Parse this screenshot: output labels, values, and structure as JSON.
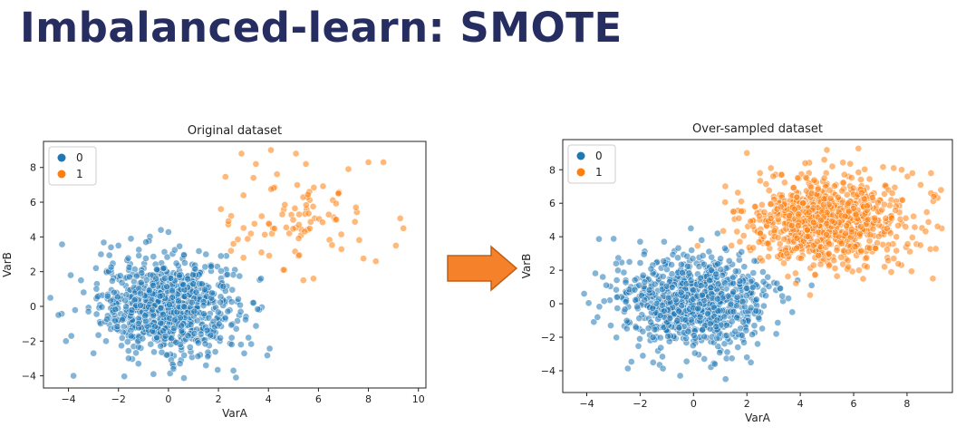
{
  "slide": {
    "title": "Imbalanced-learn: SMOTE"
  },
  "colors": {
    "class0": "#1f77b4",
    "class1": "#ff7f0e",
    "arrow_fill": "#f5822a",
    "arrow_stroke": "#c25e13",
    "title": "#262d61"
  },
  "icons": {
    "arrow": "right-arrow-icon"
  },
  "chart_data": [
    {
      "type": "scatter",
      "title": "Original dataset",
      "xlabel": "VarA",
      "ylabel": "VarB",
      "xlim": [
        -5,
        10.3
      ],
      "ylim": [
        -4.7,
        9.5
      ],
      "xticks": [
        -4,
        -2,
        0,
        2,
        4,
        6,
        8,
        10
      ],
      "yticks": [
        -4,
        -2,
        0,
        2,
        4,
        6,
        8
      ],
      "legend": {
        "placement": "top-left",
        "entries": [
          "0",
          "1"
        ]
      },
      "grid": false,
      "series": [
        {
          "name": "0",
          "color": "#1f77b4",
          "alpha": 0.55,
          "summary": {
            "count": 900,
            "center": [
              0,
              0
            ],
            "spread": [
              1.35,
              1.35
            ]
          },
          "points": [
            [
              -4.4,
              -0.5
            ],
            [
              -3.8,
              -4.0
            ],
            [
              -4.1,
              -2.0
            ],
            [
              -3.5,
              1.5
            ],
            [
              -3.2,
              -0.3
            ],
            [
              -2.9,
              2.2
            ],
            [
              -2.7,
              3.0
            ],
            [
              -2.3,
              3.4
            ],
            [
              -2.0,
              3.5
            ],
            [
              -1.5,
              3.9
            ],
            [
              -0.3,
              4.4
            ],
            [
              -0.9,
              3.7
            ],
            [
              -1.2,
              -3.3
            ],
            [
              -0.6,
              -3.9
            ],
            [
              0.2,
              -3.6
            ],
            [
              1.5,
              -3.4
            ],
            [
              2.6,
              -3.7
            ],
            [
              2.7,
              -4.1
            ],
            [
              2.9,
              -2.2
            ],
            [
              3.2,
              -1.8
            ],
            [
              3.4,
              0.2
            ],
            [
              3.7,
              1.6
            ],
            [
              2.1,
              2.9
            ],
            [
              1.5,
              3.0
            ],
            [
              -3.0,
              -2.7
            ],
            [
              -2.5,
              -2.0
            ]
          ]
        },
        {
          "name": "1",
          "color": "#ff7f0e",
          "alpha": 0.55,
          "summary": {
            "count": 100,
            "center": [
              5.3,
              5.0
            ],
            "spread": [
              1.5,
              1.3
            ]
          },
          "points": [
            [
              4.1,
              9.0
            ],
            [
              5.1,
              8.8
            ],
            [
              3.5,
              8.2
            ],
            [
              7.2,
              7.9
            ],
            [
              8.0,
              8.3
            ],
            [
              8.6,
              8.3
            ],
            [
              9.4,
              4.5
            ],
            [
              9.1,
              3.5
            ],
            [
              8.3,
              2.6
            ],
            [
              5.4,
              1.5
            ],
            [
              5.8,
              1.6
            ],
            [
              4.6,
              2.1
            ],
            [
              3.0,
              2.8
            ],
            [
              2.5,
              3.2
            ],
            [
              2.6,
              3.6
            ],
            [
              2.4,
              4.9
            ],
            [
              2.1,
              5.6
            ],
            [
              3.0,
              6.4
            ],
            [
              3.4,
              7.4
            ],
            [
              5.5,
              8.2
            ],
            [
              6.8,
              6.5
            ],
            [
              7.5,
              5.7
            ]
          ]
        }
      ]
    },
    {
      "type": "scatter",
      "title": "Over-sampled dataset",
      "xlabel": "VarA",
      "ylabel": "VarB",
      "xlim": [
        -4.9,
        9.7
      ],
      "ylim": [
        -5.3,
        9.8
      ],
      "xticks": [
        -4,
        -2,
        0,
        2,
        4,
        6,
        8
      ],
      "yticks": [
        -4,
        -2,
        0,
        2,
        4,
        6,
        8
      ],
      "legend": {
        "placement": "top-left",
        "entries": [
          "0",
          "1"
        ]
      },
      "grid": false,
      "series": [
        {
          "name": "0",
          "color": "#1f77b4",
          "alpha": 0.55,
          "summary": {
            "count": 900,
            "center": [
              0,
              0
            ],
            "spread": [
              1.35,
              1.35
            ]
          },
          "points": [
            [
              -4.1,
              0.6
            ],
            [
              -3.6,
              -0.8
            ],
            [
              -3.1,
              -1.3
            ],
            [
              -3.4,
              1.6
            ],
            [
              -2.4,
              2.5
            ],
            [
              -2.9,
              2.4
            ],
            [
              -2.0,
              3.7
            ],
            [
              -1.1,
              3.7
            ],
            [
              -0.1,
              4.5
            ],
            [
              0.9,
              4.2
            ],
            [
              0.3,
              3.8
            ],
            [
              -0.5,
              -4.3
            ],
            [
              1.2,
              -4.5
            ],
            [
              0.8,
              -3.6
            ],
            [
              -1.9,
              -3.1
            ],
            [
              2.0,
              -3.2
            ],
            [
              2.4,
              -2.4
            ],
            [
              3.1,
              -1.8
            ],
            [
              3.7,
              -0.5
            ],
            [
              3.9,
              1.4
            ],
            [
              2.6,
              1.9
            ],
            [
              1.8,
              3.1
            ]
          ]
        },
        {
          "name": "1",
          "color": "#ff7f0e",
          "alpha": 0.55,
          "summary": {
            "count": 900,
            "center": [
              5.0,
              5.0
            ],
            "spread": [
              1.5,
              1.3
            ]
          },
          "points": [
            [
              2.0,
              9.0
            ],
            [
              2.9,
              8.1
            ],
            [
              3.3,
              7.7
            ],
            [
              4.9,
              7.5
            ],
            [
              4.9,
              8.6
            ],
            [
              5.2,
              8.2
            ],
            [
              7.5,
              8.1
            ],
            [
              7.8,
              8.0
            ],
            [
              8.2,
              7.8
            ],
            [
              8.9,
              7.8
            ],
            [
              8.9,
              6.6
            ],
            [
              9.0,
              6.4
            ],
            [
              8.5,
              3.5
            ],
            [
              6.5,
              2.2
            ],
            [
              6.2,
              2.0
            ],
            [
              5.8,
              2.2
            ],
            [
              4.5,
              2.3
            ],
            [
              3.5,
              3.0
            ],
            [
              2.8,
              3.6
            ],
            [
              2.5,
              4.2
            ],
            [
              1.7,
              5.1
            ],
            [
              2.3,
              5.8
            ],
            [
              1.5,
              5.5
            ],
            [
              7.2,
              5.1
            ]
          ]
        }
      ]
    }
  ]
}
